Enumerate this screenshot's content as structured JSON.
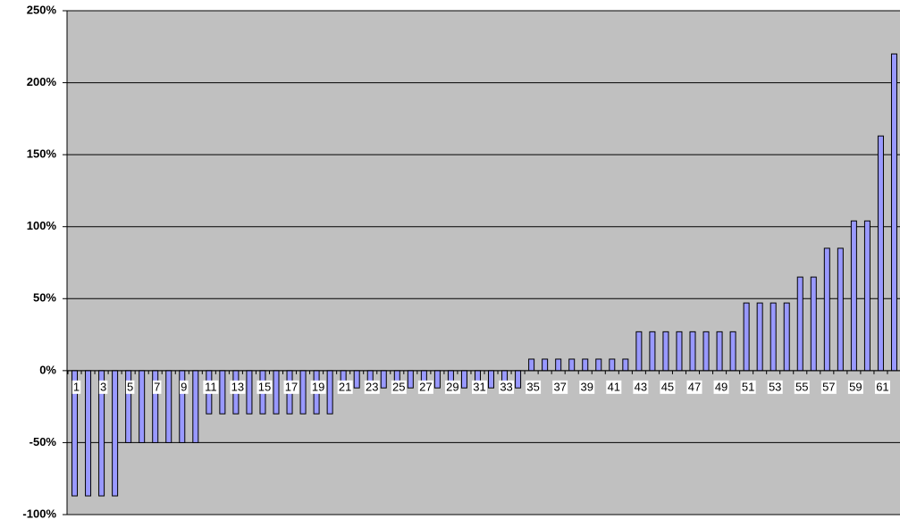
{
  "chart_data": {
    "type": "bar",
    "categories": [
      "1",
      null,
      "3",
      null,
      "5",
      null,
      "7",
      null,
      "9",
      null,
      "11",
      null,
      "13",
      null,
      "15",
      null,
      "17",
      null,
      "19",
      null,
      "21",
      null,
      "23",
      null,
      "25",
      null,
      "27",
      null,
      "29",
      null,
      "31",
      null,
      "33",
      null,
      "35",
      null,
      "37",
      null,
      "39",
      null,
      "41",
      null,
      "43",
      null,
      "45",
      null,
      "47",
      null,
      "49",
      null,
      "51",
      null,
      "53",
      null,
      "55",
      null,
      "57",
      null,
      "59",
      null,
      "61",
      null
    ],
    "values": [
      -87,
      -87,
      -87,
      -87,
      -50,
      -50,
      -50,
      -50,
      -50,
      -50,
      -30,
      -30,
      -30,
      -30,
      -30,
      -30,
      -30,
      -30,
      -30,
      -30,
      -12,
      -12,
      -12,
      -12,
      -12,
      -12,
      -12,
      -12,
      -12,
      -12,
      -12,
      -12,
      -12,
      -12,
      8,
      8,
      8,
      8,
      8,
      8,
      8,
      8,
      27,
      27,
      27,
      27,
      27,
      27,
      27,
      27,
      47,
      47,
      47,
      47,
      65,
      65,
      85,
      85,
      104,
      104,
      163,
      220
    ],
    "color": "#9999ff",
    "ylim": [
      -100,
      250
    ],
    "yticks": [
      {
        "value": -100,
        "label": "-100%"
      },
      {
        "value": -50,
        "label": "-50%"
      },
      {
        "value": 0,
        "label": "0%"
      },
      {
        "value": 50,
        "label": "50%"
      },
      {
        "value": 100,
        "label": "100%"
      },
      {
        "value": 150,
        "label": "150%"
      },
      {
        "value": 200,
        "label": "200%"
      },
      {
        "value": 250,
        "label": "250%"
      }
    ],
    "grid": true
  }
}
